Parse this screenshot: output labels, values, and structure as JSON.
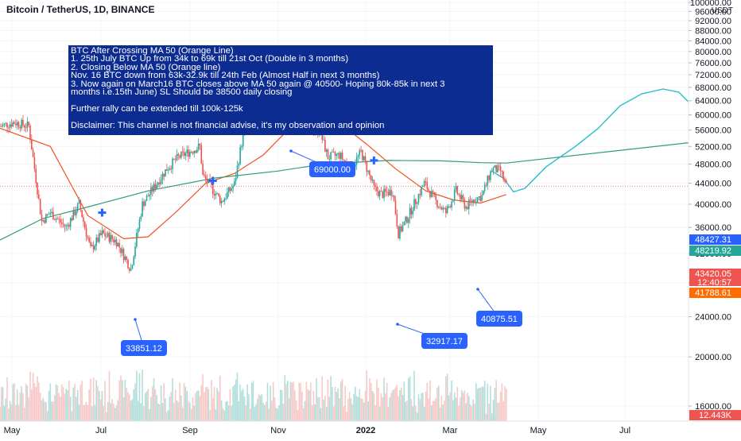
{
  "header": {
    "title": "Bitcoin / TetherUS, 1D, BINANCE",
    "currency": "USDT"
  },
  "annotation_box": {
    "lines": [
      "BTC After Crossing MA 50 (Orange Line)",
      "1. 25th July BTC Up from 34k to 69k till 21st Oct (Double in 3 months)",
      "2. Closing Below MA 50 (Orange line)",
      "Nov. 16 BTC down from 63k-32.9k till 24th Feb (Almost Half in next 3 months)",
      "3. Now again on March16 BTC closes above MA 50 again @ 40500- Hoping 80k-85k in next 3",
      "months i.e.15th June) SL Should be 38500 daily closing",
      "",
      "Further rally can be extended till 100k-125k",
      "",
      "Disclaimer: This channel is not financial advise, it's my observation and opinion"
    ],
    "bg_color": "#0d2c91"
  },
  "price_labels": [
    {
      "text": "69000.00",
      "value": 69000
    },
    {
      "text": "33851.12",
      "value": 33851.12
    },
    {
      "text": "32917.17",
      "value": 32917.17
    },
    {
      "text": "40875.51",
      "value": 40875.51
    }
  ],
  "axis_badges": [
    {
      "text": "48427.31",
      "color": "#2962ff"
    },
    {
      "text": "48219.92",
      "color": "#26a69a"
    },
    {
      "text": "43420.05",
      "color": "#ef5350"
    },
    {
      "text": "12:40:57",
      "color": "#ef5350"
    },
    {
      "text": "41788.61",
      "color": "#ff6d00"
    },
    {
      "text": "12.443K",
      "color": "#ef5350"
    }
  ],
  "colors": {
    "up": "#26a69a",
    "down": "#ef5350",
    "ma50": "#f4511e",
    "ma200": "#2e9e76",
    "projection": "#26bcd0",
    "label_bg": "#2962ff",
    "cross_marker": "#2962ff",
    "volume_up": "#b2dfdb",
    "volume_down": "#f8c9c7"
  },
  "chart_data": {
    "type": "candlestick",
    "title": "Bitcoin / TetherUS, 1D, BINANCE",
    "ylabel": "USDT",
    "ylim": [
      8000,
      100000
    ],
    "y_scale": "log",
    "y_ticks": [
      "100000.00",
      "96000.00",
      "92000.00",
      "88000.00",
      "84000.00",
      "80000.00",
      "76000.00",
      "72000.00",
      "68000.00",
      "64000.00",
      "60000.00",
      "56000.00",
      "52000.00",
      "48000.00",
      "44000.00",
      "40000.00",
      "36000.00",
      "32000.00",
      "28000.00",
      "24000.00",
      "20000.00",
      "16000.00"
    ],
    "x_ticks": [
      "May",
      "Jul",
      "Sep",
      "Nov",
      "2022",
      "Mar",
      "May",
      "Jul"
    ],
    "x_range": [
      "2021-04-20",
      "2022-08-15"
    ],
    "price_path": [
      [
        "2021-04-20",
        57000
      ],
      [
        "2021-04-30",
        58000
      ],
      [
        "2021-05-10",
        57000
      ],
      [
        "2021-05-19",
        37000
      ],
      [
        "2021-05-25",
        38500
      ],
      [
        "2021-06-05",
        36000
      ],
      [
        "2021-06-14",
        40000
      ],
      [
        "2021-06-22",
        32500
      ],
      [
        "2021-06-30",
        35000
      ],
      [
        "2021-07-10",
        33800
      ],
      [
        "2021-07-20",
        29800
      ],
      [
        "2021-07-28",
        40000
      ],
      [
        "2021-08-14",
        47000
      ],
      [
        "2021-08-22",
        49500
      ],
      [
        "2021-09-06",
        52000
      ],
      [
        "2021-09-08",
        45500
      ],
      [
        "2021-09-21",
        40500
      ],
      [
        "2021-09-30",
        43800
      ],
      [
        "2021-10-06",
        55000
      ],
      [
        "2021-10-20",
        65000
      ],
      [
        "2021-10-28",
        61000
      ],
      [
        "2021-11-09",
        67500
      ],
      [
        "2021-11-19",
        57000
      ],
      [
        "2021-11-28",
        56000
      ],
      [
        "2021-12-04",
        49500
      ],
      [
        "2021-12-12",
        50000
      ],
      [
        "2021-12-20",
        47000
      ],
      [
        "2021-12-27",
        50700
      ],
      [
        "2022-01-05",
        43000
      ],
      [
        "2022-01-10",
        41800
      ],
      [
        "2022-01-18",
        42500
      ],
      [
        "2022-01-22",
        35000
      ],
      [
        "2022-01-27",
        37000
      ],
      [
        "2022-02-09",
        44000
      ],
      [
        "2022-02-17",
        40500
      ],
      [
        "2022-02-24",
        38500
      ],
      [
        "2022-03-03",
        42500
      ],
      [
        "2022-03-10",
        39500
      ],
      [
        "2022-03-16",
        41000
      ],
      [
        "2022-03-21",
        41500
      ],
      [
        "2022-03-28",
        47000
      ],
      [
        "2022-04-03",
        46500
      ],
      [
        "2022-04-07",
        43420
      ]
    ],
    "series": [
      {
        "name": "MA 50",
        "points": [
          [
            "2021-04-20",
            56500
          ],
          [
            "2021-05-25",
            52000
          ],
          [
            "2021-06-20",
            38000
          ],
          [
            "2021-07-15",
            34200
          ],
          [
            "2021-08-01",
            34500
          ],
          [
            "2021-08-20",
            38500
          ],
          [
            "2021-09-10",
            44000
          ],
          [
            "2021-09-30",
            46000
          ],
          [
            "2021-10-20",
            50000
          ],
          [
            "2021-11-10",
            57500
          ],
          [
            "2021-11-25",
            60500
          ],
          [
            "2021-12-10",
            58500
          ],
          [
            "2021-12-31",
            52500
          ],
          [
            "2022-01-20",
            47000
          ],
          [
            "2022-02-10",
            42500
          ],
          [
            "2022-03-01",
            40800
          ],
          [
            "2022-03-20",
            40200
          ],
          [
            "2022-04-07",
            41789
          ]
        ]
      },
      {
        "name": "MA 200",
        "points": [
          [
            "2021-04-20",
            34000
          ],
          [
            "2021-05-20",
            37500
          ],
          [
            "2021-06-20",
            39500
          ],
          [
            "2021-08-01",
            42500
          ],
          [
            "2021-09-15",
            45000
          ],
          [
            "2021-10-30",
            46500
          ],
          [
            "2021-12-01",
            48000
          ],
          [
            "2022-01-15",
            48800
          ],
          [
            "2022-02-20",
            48700
          ],
          [
            "2022-03-20",
            48300
          ],
          [
            "2022-04-07",
            48220
          ],
          [
            "2022-08-15",
            53000
          ]
        ]
      },
      {
        "name": "Projection",
        "points": [
          [
            "2022-03-28",
            46500
          ],
          [
            "2022-04-05",
            45000
          ],
          [
            "2022-04-12",
            42300
          ],
          [
            "2022-04-20",
            43000
          ],
          [
            "2022-05-05",
            47500
          ],
          [
            "2022-05-25",
            52000
          ],
          [
            "2022-06-10",
            56500
          ],
          [
            "2022-06-25",
            62500
          ],
          [
            "2022-07-10",
            66000
          ],
          [
            "2022-07-25",
            67500
          ],
          [
            "2022-08-05",
            66500
          ],
          [
            "2022-08-12",
            63500
          ]
        ]
      }
    ],
    "markers": [
      {
        "date": "2021-10-20",
        "value": 69000,
        "label": "69000.00"
      },
      {
        "date": "2021-07-20",
        "value": 33851.12,
        "label": "33851.12"
      },
      {
        "date": "2022-01-24",
        "value": 32917.17,
        "label": "32917.17"
      },
      {
        "date": "2022-03-16",
        "value": 40875.51,
        "label": "40875.51"
      }
    ],
    "cross_points": [
      {
        "date": "2021-06-30",
        "value": 38500
      },
      {
        "date": "2021-09-15",
        "value": 44500
      },
      {
        "date": "2022-01-05",
        "value": 48800
      }
    ]
  }
}
